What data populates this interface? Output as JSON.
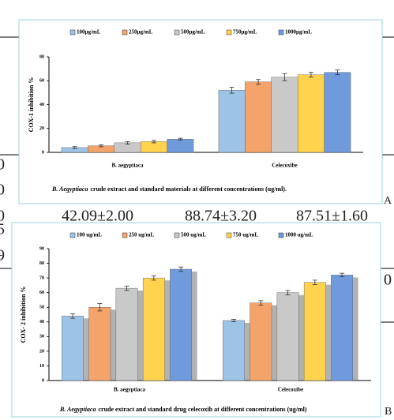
{
  "chart_data": [
    {
      "type": "bar",
      "y_label": "COX-1 inhibition %",
      "categories": [
        "B. aegyptiaca",
        "Celecoxibe"
      ],
      "ylim": [
        0,
        80
      ],
      "yticks": [
        0,
        20,
        40,
        60,
        80
      ],
      "series": [
        {
          "name": "100μg/mL",
          "color": "#9dc3e6",
          "values": [
            4,
            52
          ],
          "errors": [
            0.8,
            2.5
          ]
        },
        {
          "name": "250μg/mL",
          "color": "#f4a46a",
          "values": [
            5.5,
            59
          ],
          "errors": [
            0.8,
            2
          ]
        },
        {
          "name": "500μg/mL",
          "color": "#c9c9c9",
          "values": [
            8,
            63
          ],
          "errors": [
            1,
            3
          ]
        },
        {
          "name": "750μg/mL",
          "color": "#ffd34d",
          "values": [
            9,
            65
          ],
          "errors": [
            1,
            2
          ]
        },
        {
          "name": "1000μg/mL",
          "color": "#6f9bdc",
          "values": [
            11,
            67
          ],
          "errors": [
            0.8,
            2
          ]
        }
      ],
      "caption": [
        "B. Aegyptiaca",
        "crude extract and standard materials at different concentrations (ug/ml)."
      ]
    },
    {
      "type": "bar",
      "y_label": "COX- 2 inhibition %",
      "categories": [
        "B. aegyptiaca",
        "Celecoxibe"
      ],
      "ylim": [
        0,
        90
      ],
      "yticks": [
        0,
        10,
        20,
        30,
        40,
        50,
        60,
        70,
        80,
        90
      ],
      "series": [
        {
          "name": "100 ug/mL",
          "color": "#9dc3e6",
          "values": [
            44,
            41
          ],
          "errors": [
            1.5,
            0.8
          ]
        },
        {
          "name": "250 ug/mL",
          "color": "#f4a46a",
          "values": [
            50,
            53
          ],
          "errors": [
            2.5,
            1.5
          ]
        },
        {
          "name": "500 ug/mL",
          "color": "#c9c9c9",
          "values": [
            63,
            60
          ],
          "errors": [
            1.5,
            1.5
          ]
        },
        {
          "name": "750 ug/mL",
          "color": "#ffd34d",
          "values": [
            70,
            67
          ],
          "errors": [
            1.5,
            1.5
          ]
        },
        {
          "name": "1000 ug/mL",
          "color": "#6f9bdc",
          "values": [
            76,
            72
          ],
          "errors": [
            1.5,
            1.2
          ]
        }
      ],
      "caption": [
        "B. Aegyptiaca",
        "crude extract and standard drug celecoxib at different concentrations (ug/ml)"
      ]
    }
  ],
  "document_fragments": [
    "0",
    "0",
    "0",
    "42.09±2.00",
    "88.74±3.20",
    "87.51±1.60",
    "5",
    "9",
    "0",
    "A",
    "B"
  ]
}
